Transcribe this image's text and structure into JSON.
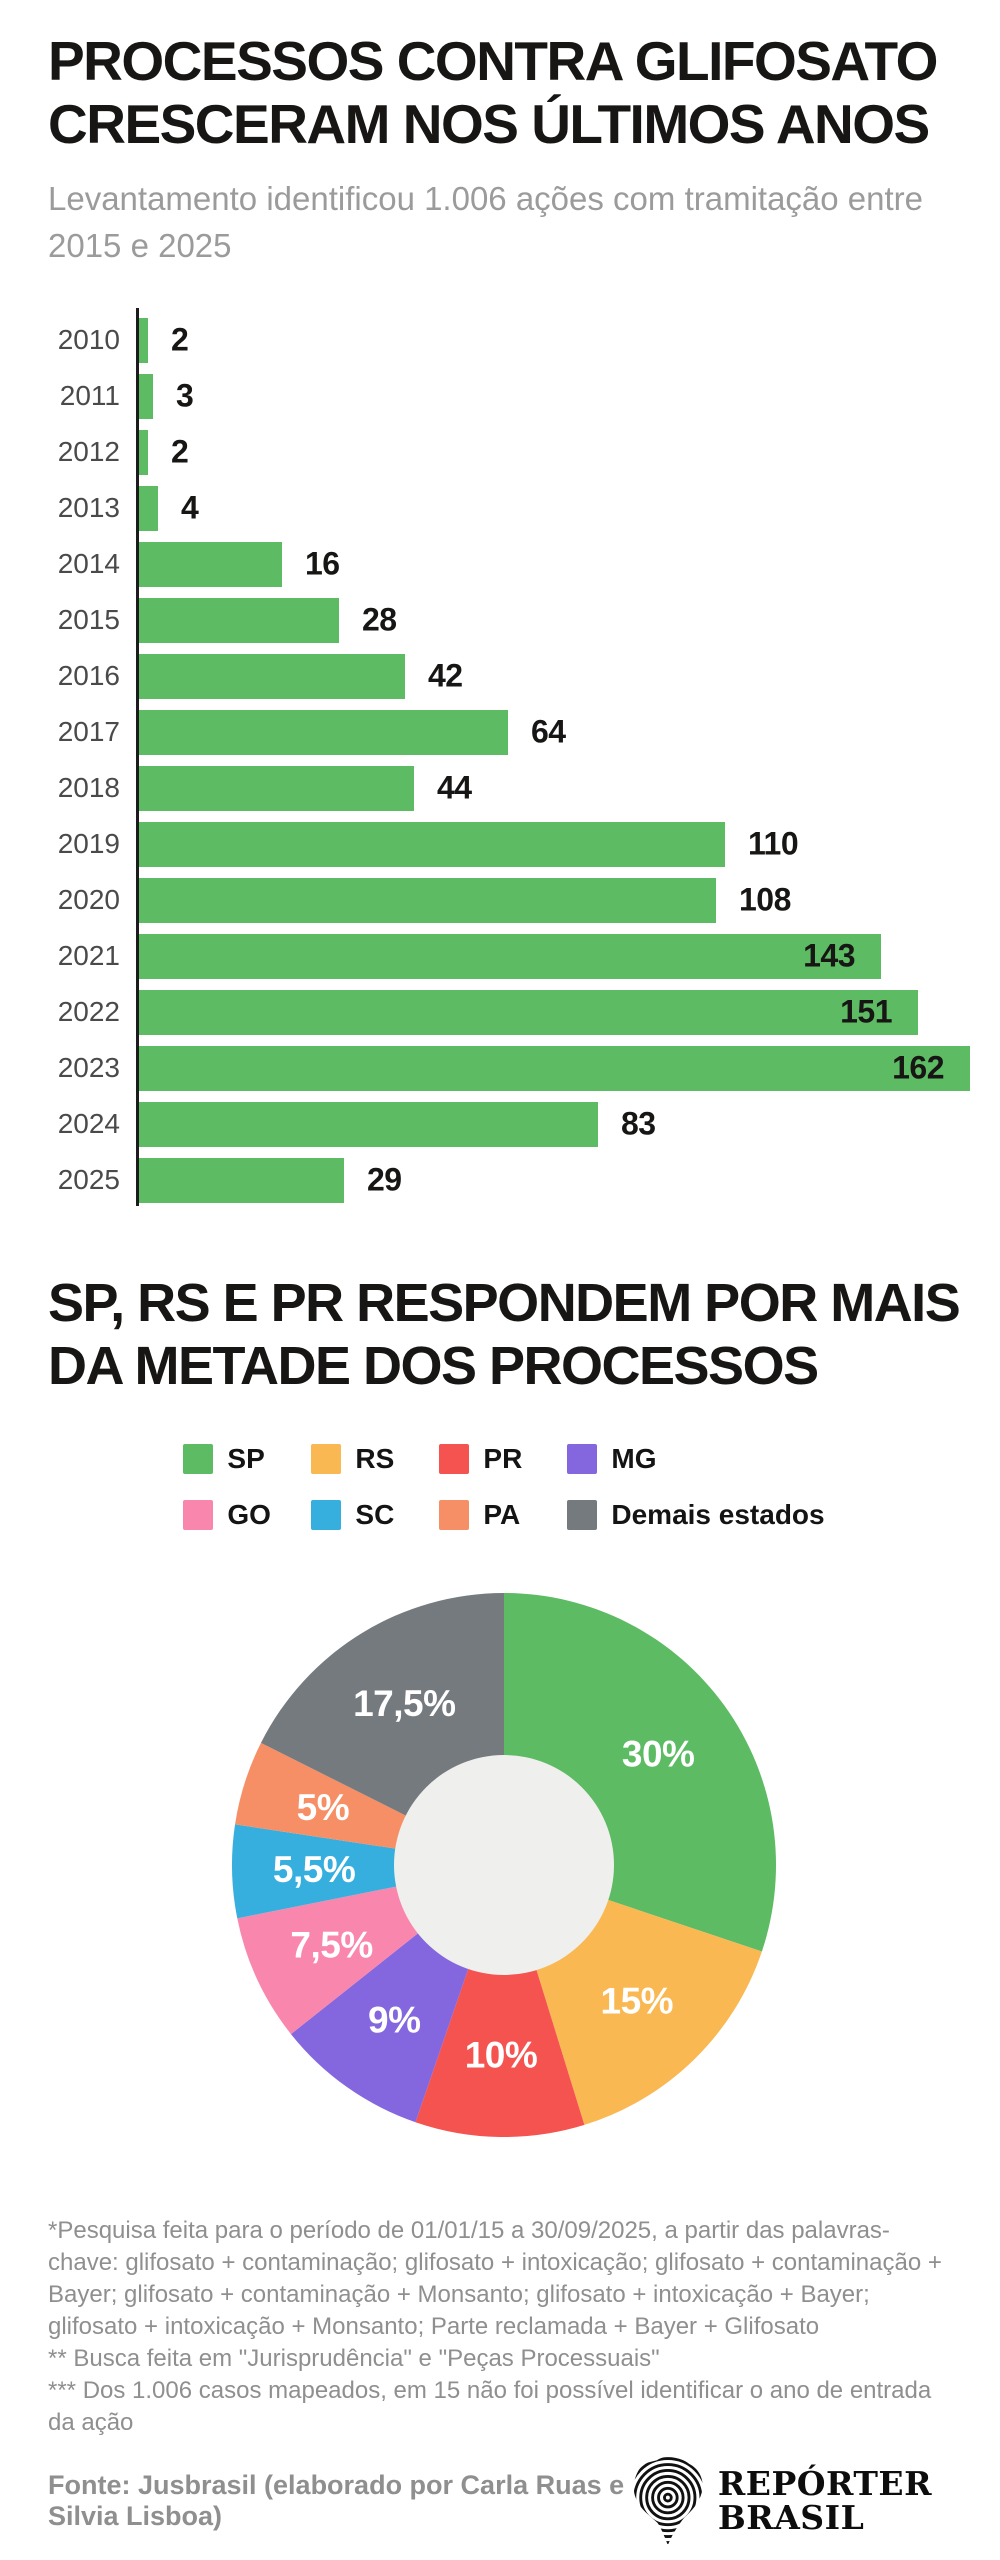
{
  "header": {
    "title_lines": [
      "PROCESSOS CONTRA GLIFOSATO",
      "CRESCERAM NOS ÚLTIMOS ANOS"
    ],
    "subtitle": "Levantamento identificou 1.006 ações com tramitação entre 2015 e 2025"
  },
  "chart_data": [
    {
      "type": "bar",
      "orientation": "horizontal",
      "categories": [
        "2010",
        "2011",
        "2012",
        "2013",
        "2014",
        "2015",
        "2016",
        "2017",
        "2018",
        "2019",
        "2020",
        "2021",
        "2022",
        "2023",
        "2024",
        "2025"
      ],
      "values": [
        2,
        3,
        2,
        4,
        16,
        28,
        42,
        64,
        44,
        110,
        108,
        143,
        151,
        162,
        83,
        29
      ],
      "bar_color": "#5cbb63",
      "xlim": [
        0,
        162
      ],
      "grid": false,
      "value_labels_shown": true
    },
    {
      "type": "pie",
      "donut": true,
      "title": "SP, RS E PR RESPONDEM POR MAIS DA METADE DOS PROCESSOS",
      "labels": [
        "SP",
        "RS",
        "PR",
        "MG",
        "GO",
        "SC",
        "PA",
        "Demais estados"
      ],
      "values": [
        30,
        15,
        10,
        9,
        7.5,
        5.5,
        5,
        17.5
      ],
      "value_labels": [
        "30%",
        "15%",
        "10%",
        "9%",
        "7,5%",
        "5,5%",
        "5%",
        "17,5%"
      ],
      "colors": [
        "#5cbb63",
        "#f9b852",
        "#f4534f",
        "#8467de",
        "#f986ad",
        "#36aede",
        "#f78f66",
        "#757a7f"
      ],
      "hole_color": "#efefed",
      "start_angle_deg": 0,
      "direction": "clockwise",
      "legend_position": "top"
    }
  ],
  "section2": {
    "title_lines": [
      "SP, RS E PR RESPONDEM POR MAIS",
      "DA METADE DOS PROCESSOS"
    ]
  },
  "footer": {
    "notes": [
      "*Pesquisa feita para o período de 01/01/15 a 30/09/2025, a partir das palavras-chave: glifosato + contaminação; glifosato + intoxicação; glifosato + contaminação + Bayer; glifosato + contaminação + Monsanto; glifosato + intoxicação + Bayer; glifosato + intoxicação + Monsanto; Parte reclamada + Bayer + Glifosato",
      "** Busca feita em \"Jurisprudência\" e \"Peças Processuais\"",
      "*** Dos 1.006 casos mapeados, em 15 não foi possível identificar o ano de entrada da ação"
    ],
    "source": "Fonte: Jusbrasil (elaborado por Carla Ruas e Silvia Lisboa)",
    "logo": {
      "line1": "Repórter",
      "line2": "Brasil",
      "icon": "fingerprint-brazil-icon"
    }
  },
  "colors": {
    "background": "#ffffff",
    "title": "#171614",
    "subtitle": "#9b9b9b",
    "year_label": "#4a4a4a",
    "value_label": "#171614",
    "axis": "#1c1c1c",
    "notes": "#8f8f8f"
  }
}
